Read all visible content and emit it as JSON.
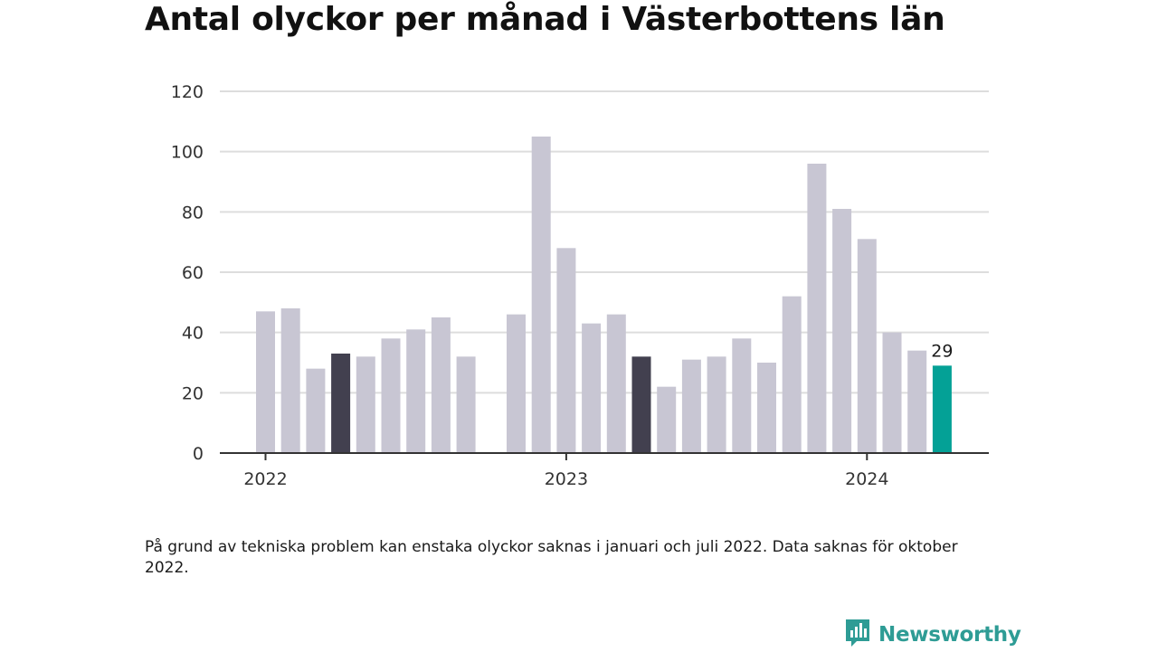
{
  "title": "Antal olyckor per månad i Västerbottens län",
  "note": "På grund av tekniska problem kan enstaka olyckor saknas i januari och juli 2022. Data saknas för oktober 2022.",
  "brand": {
    "name": "Newsworthy",
    "icon": "newsworthy-logo-icon"
  },
  "colors": {
    "default": "#c8c6d3",
    "highlight": "#42404f",
    "latest": "#04a196",
    "grid": "#dddddd",
    "axis": "#333333"
  },
  "chart_data": {
    "type": "bar",
    "title": "Antal olyckor per månad i Västerbottens län",
    "xlabel": "",
    "ylabel": "",
    "ylim": [
      0,
      120
    ],
    "yticks": [
      "0",
      "20",
      "40",
      "60",
      "80",
      "100",
      "120"
    ],
    "xticks": [
      "2022",
      "2023",
      "2024"
    ],
    "grid": true,
    "categories": [
      "2022-01",
      "2022-02",
      "2022-03",
      "2022-04",
      "2022-05",
      "2022-06",
      "2022-07",
      "2022-08",
      "2022-09",
      "2022-10",
      "2022-11",
      "2022-12",
      "2023-01",
      "2023-02",
      "2023-03",
      "2023-04",
      "2023-05",
      "2023-06",
      "2023-07",
      "2023-08",
      "2023-09",
      "2023-10",
      "2023-11",
      "2023-12",
      "2024-01",
      "2024-02",
      "2024-03",
      "2024-04"
    ],
    "values": [
      47,
      48,
      28,
      33,
      32,
      38,
      41,
      45,
      32,
      null,
      46,
      105,
      68,
      43,
      46,
      32,
      22,
      31,
      32,
      38,
      30,
      52,
      96,
      81,
      71,
      40,
      34,
      29
    ],
    "highlight": [
      "2022-04",
      "2023-04"
    ],
    "latest": "2024-04",
    "data_labels": [
      {
        "category": "2024-04",
        "text": "29"
      }
    ]
  }
}
